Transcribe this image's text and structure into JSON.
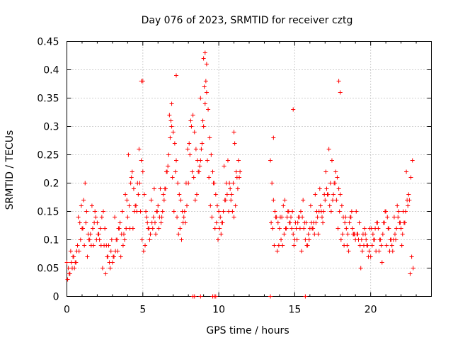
{
  "chart_data": {
    "type": "scatter",
    "title": "Day 076 of 2023, SRMTID for receiver cztg",
    "xlabel": "GPS time / hours",
    "ylabel": "SRMTID / TECUs",
    "xlim": [
      0,
      24
    ],
    "ylim": [
      0,
      0.45
    ],
    "grid": true,
    "legend": "none",
    "marker": "plus",
    "color": "#ff0000",
    "x_ticks": [
      {
        "value": 0,
        "label": "0"
      },
      {
        "value": 5,
        "label": "5"
      },
      {
        "value": 10,
        "label": "10"
      },
      {
        "value": 15,
        "label": "15"
      },
      {
        "value": 20,
        "label": "20"
      }
    ],
    "y_ticks": [
      {
        "value": 0,
        "label": "0"
      },
      {
        "value": 0.05,
        "label": "0.05"
      },
      {
        "value": 0.1,
        "label": "0.1"
      },
      {
        "value": 0.15,
        "label": "0.15"
      },
      {
        "value": 0.2,
        "label": "0.2"
      },
      {
        "value": 0.25,
        "label": "0.25"
      },
      {
        "value": 0.3,
        "label": "0.3"
      },
      {
        "value": 0.35,
        "label": "0.35"
      },
      {
        "value": 0.4,
        "label": "0.4"
      },
      {
        "value": 0.45,
        "label": "0.45"
      }
    ],
    "series": [
      {
        "name": "SRMTID",
        "x": [
          0.0,
          0.1,
          0.2,
          0.3,
          0.4,
          0.5,
          0.6,
          0.7,
          0.8,
          0.9,
          1.0,
          1.1,
          1.2,
          1.3,
          1.4,
          1.5,
          1.6,
          1.7,
          1.8,
          1.9,
          2.0,
          2.1,
          2.2,
          2.3,
          2.4,
          2.5,
          2.6,
          2.7,
          2.8,
          2.9,
          3.0,
          3.1,
          3.2,
          3.3,
          3.4,
          3.5,
          3.6,
          3.7,
          3.8,
          3.9,
          4.0,
          4.1,
          4.2,
          4.3,
          4.4,
          4.5,
          4.6,
          4.7,
          4.8,
          4.9,
          5.0,
          5.1,
          5.2,
          5.3,
          5.4,
          5.5,
          5.6,
          5.7,
          5.8,
          5.9,
          6.0,
          6.1,
          6.2,
          6.3,
          6.4,
          6.5,
          6.6,
          6.7,
          6.8,
          6.9,
          7.0,
          7.1,
          7.2,
          7.3,
          7.4,
          7.5,
          7.6,
          7.7,
          7.8,
          7.9,
          8.0,
          8.1,
          8.2,
          8.3,
          8.4,
          8.5,
          8.6,
          8.7,
          8.8,
          8.9,
          9.0,
          9.1,
          9.2,
          9.3,
          9.4,
          9.5,
          9.6,
          9.7,
          9.8,
          9.9,
          10.0,
          10.1,
          10.2,
          10.3,
          10.4,
          10.5,
          10.6,
          10.7,
          10.8,
          10.9,
          11.0,
          11.1,
          11.2,
          11.3,
          11.4,
          13.4,
          13.5,
          13.6,
          13.7,
          13.8,
          13.9,
          14.0,
          14.1,
          14.2,
          14.3,
          14.4,
          14.5,
          14.6,
          14.7,
          14.8,
          14.9,
          15.0,
          15.1,
          15.2,
          15.3,
          15.4,
          15.5,
          15.6,
          15.7,
          15.8,
          15.9,
          16.0,
          16.1,
          16.2,
          16.3,
          16.4,
          16.5,
          16.6,
          16.7,
          16.8,
          16.9,
          17.0,
          17.1,
          17.2,
          17.3,
          17.4,
          17.5,
          17.6,
          17.7,
          17.8,
          17.9,
          18.0,
          18.1,
          18.2,
          18.3,
          18.4,
          18.5,
          18.6,
          18.7,
          18.8,
          18.9,
          19.0,
          19.1,
          19.2,
          19.3,
          19.4,
          19.5,
          19.6,
          19.7,
          19.8,
          19.9,
          20.0,
          20.1,
          20.2,
          20.3,
          20.4,
          20.5,
          20.6,
          20.7,
          20.8,
          20.9,
          21.0,
          21.1,
          21.2,
          21.3,
          21.4,
          21.5,
          21.6,
          21.7,
          21.8,
          21.9,
          22.0,
          22.1,
          22.2,
          22.3,
          22.4,
          22.5,
          22.6,
          22.7,
          22.8,
          0.05,
          0.15,
          0.25,
          0.35,
          0.45,
          0.55,
          0.65,
          0.75,
          0.85,
          0.95,
          1.05,
          1.15,
          1.25,
          1.35,
          1.45,
          1.55,
          1.65,
          1.75,
          1.85,
          1.95,
          2.05,
          2.15,
          2.25,
          2.35,
          2.45,
          2.55,
          2.65,
          2.75,
          2.85,
          2.95,
          3.05,
          3.15,
          3.25,
          3.35,
          3.45,
          3.55,
          3.65,
          3.75,
          3.85,
          3.95,
          4.05,
          4.15,
          4.25,
          4.35,
          4.45,
          4.55,
          4.65,
          4.75,
          4.85,
          4.95,
          5.05,
          5.15,
          5.25,
          5.35,
          5.45,
          5.55,
          5.65,
          5.75,
          5.85,
          5.95,
          6.05,
          6.15,
          6.25,
          6.35,
          6.45,
          6.55,
          6.65,
          6.75,
          6.85,
          6.95,
          7.05,
          7.15,
          7.25,
          7.35,
          7.45,
          7.55,
          7.65,
          7.75,
          7.85,
          7.95,
          8.05,
          8.15,
          8.25,
          8.35,
          8.45,
          8.55,
          8.65,
          8.75,
          8.85,
          8.95,
          9.05,
          9.15,
          9.25,
          9.35,
          9.45,
          9.55,
          9.65,
          9.75,
          9.85,
          9.95,
          10.05,
          10.15,
          10.25,
          10.35,
          10.45,
          10.55,
          10.65,
          10.75,
          10.85,
          10.95,
          11.05,
          11.15,
          11.25,
          11.35,
          13.45,
          13.55,
          13.65,
          13.75,
          13.85,
          13.95,
          14.05,
          14.15,
          14.25,
          14.35,
          14.45,
          14.55,
          14.65,
          14.75,
          14.85,
          14.95,
          15.05,
          15.15,
          15.25,
          15.35,
          15.45,
          15.55,
          15.65,
          15.75,
          15.85,
          15.95,
          16.05,
          16.15,
          16.25,
          16.35,
          16.45,
          16.55,
          16.65,
          16.75,
          16.85,
          16.95,
          17.05,
          17.15,
          17.25,
          17.35,
          17.45,
          17.55,
          17.65,
          17.75,
          17.85,
          17.95,
          18.05,
          18.15,
          18.25,
          18.35,
          18.45,
          18.55,
          18.65,
          18.75,
          18.85,
          18.95,
          19.05,
          19.15,
          19.25,
          19.35,
          19.45,
          19.55,
          19.65,
          19.75,
          19.85,
          19.95,
          20.05,
          20.15,
          20.25,
          20.35,
          20.45,
          20.55,
          20.65,
          20.75,
          20.85,
          20.95,
          21.05,
          21.15,
          21.25,
          21.35,
          21.45,
          21.55,
          21.65,
          21.75,
          21.85,
          21.95,
          22.05,
          22.15,
          22.25,
          22.35,
          22.45,
          22.55,
          22.65,
          22.75,
          4.9,
          5.0,
          6.9,
          7.2,
          8.8,
          9.0,
          9.1,
          9.2,
          11.0,
          13.6,
          14.9,
          17.9,
          18.0,
          8.3,
          8.4,
          8.8,
          9.6,
          9.7,
          9.8,
          13.4,
          15.7
        ],
        "y": [
          0.06,
          0.05,
          0.04,
          0.06,
          0.07,
          0.05,
          0.06,
          0.09,
          0.08,
          0.1,
          0.12,
          0.17,
          0.2,
          0.15,
          0.11,
          0.1,
          0.09,
          0.12,
          0.13,
          0.14,
          0.13,
          0.11,
          0.12,
          0.14,
          0.15,
          0.12,
          0.09,
          0.07,
          0.06,
          0.08,
          0.06,
          0.07,
          0.08,
          0.1,
          0.12,
          0.13,
          0.11,
          0.09,
          0.1,
          0.12,
          0.14,
          0.16,
          0.2,
          0.22,
          0.19,
          0.16,
          0.15,
          0.18,
          0.2,
          0.24,
          0.22,
          0.18,
          0.15,
          0.13,
          0.12,
          0.11,
          0.13,
          0.14,
          0.13,
          0.15,
          0.16,
          0.14,
          0.13,
          0.15,
          0.17,
          0.19,
          0.22,
          0.25,
          0.28,
          0.3,
          0.29,
          0.27,
          0.24,
          0.2,
          0.18,
          0.17,
          0.15,
          0.14,
          0.13,
          0.16,
          0.2,
          0.25,
          0.3,
          0.32,
          0.29,
          0.26,
          0.24,
          0.22,
          0.24,
          0.27,
          0.3,
          0.34,
          0.36,
          0.33,
          0.28,
          0.25,
          0.22,
          0.2,
          0.18,
          0.16,
          0.15,
          0.14,
          0.13,
          0.15,
          0.17,
          0.2,
          0.24,
          0.2,
          0.17,
          0.15,
          0.14,
          0.16,
          0.21,
          0.24,
          0.22,
          0.24,
          0.2,
          0.17,
          0.15,
          0.14,
          0.13,
          0.12,
          0.1,
          0.09,
          0.11,
          0.12,
          0.14,
          0.15,
          0.13,
          0.12,
          0.11,
          0.1,
          0.12,
          0.13,
          0.14,
          0.15,
          0.14,
          0.12,
          0.1,
          0.09,
          0.11,
          0.12,
          0.13,
          0.12,
          0.11,
          0.13,
          0.14,
          0.15,
          0.16,
          0.14,
          0.15,
          0.17,
          0.19,
          0.18,
          0.16,
          0.15,
          0.17,
          0.2,
          0.22,
          0.21,
          0.19,
          0.18,
          0.16,
          0.14,
          0.13,
          0.12,
          0.11,
          0.13,
          0.14,
          0.12,
          0.11,
          0.1,
          0.11,
          0.1,
          0.09,
          0.1,
          0.11,
          0.12,
          0.1,
          0.09,
          0.08,
          0.07,
          0.09,
          0.1,
          0.12,
          0.13,
          0.12,
          0.1,
          0.09,
          0.11,
          0.13,
          0.15,
          0.14,
          0.12,
          0.1,
          0.09,
          0.1,
          0.11,
          0.12,
          0.14,
          0.13,
          0.12,
          0.11,
          0.13,
          0.15,
          0.17,
          0.18,
          0.04,
          0.07,
          0.05,
          0.03,
          0.04,
          0.08,
          0.05,
          0.07,
          0.06,
          0.08,
          0.14,
          0.13,
          0.16,
          0.12,
          0.09,
          0.13,
          0.07,
          0.1,
          0.11,
          0.16,
          0.09,
          0.15,
          0.1,
          0.11,
          0.1,
          0.09,
          0.05,
          0.09,
          0.04,
          0.07,
          0.09,
          0.05,
          0.1,
          0.07,
          0.14,
          0.1,
          0.08,
          0.12,
          0.07,
          0.15,
          0.11,
          0.18,
          0.17,
          0.25,
          0.12,
          0.21,
          0.12,
          0.15,
          0.16,
          0.2,
          0.26,
          0.15,
          0.1,
          0.08,
          0.09,
          0.14,
          0.12,
          0.1,
          0.17,
          0.12,
          0.19,
          0.11,
          0.15,
          0.12,
          0.19,
          0.14,
          0.18,
          0.19,
          0.22,
          0.23,
          0.32,
          0.31,
          0.21,
          0.15,
          0.22,
          0.14,
          0.11,
          0.12,
          0.1,
          0.13,
          0.15,
          0.2,
          0.26,
          0.27,
          0.31,
          0.22,
          0.21,
          0.17,
          0.18,
          0.22,
          0.23,
          0.26,
          0.31,
          0.37,
          0.38,
          0.24,
          0.21,
          0.16,
          0.14,
          0.2,
          0.12,
          0.13,
          0.1,
          0.12,
          0.11,
          0.13,
          0.23,
          0.17,
          0.18,
          0.15,
          0.19,
          0.18,
          0.2,
          0.27,
          0.22,
          0.19,
          0.21,
          0.13,
          0.12,
          0.09,
          0.14,
          0.08,
          0.09,
          0.14,
          0.14,
          0.16,
          0.17,
          0.12,
          0.15,
          0.13,
          0.14,
          0.15,
          0.09,
          0.13,
          0.1,
          0.14,
          0.12,
          0.08,
          0.17,
          0.13,
          0.13,
          0.09,
          0.1,
          0.16,
          0.12,
          0.13,
          0.18,
          0.15,
          0.11,
          0.19,
          0.15,
          0.13,
          0.18,
          0.22,
          0.18,
          0.26,
          0.2,
          0.24,
          0.18,
          0.2,
          0.17,
          0.12,
          0.15,
          0.1,
          0.11,
          0.09,
          0.14,
          0.09,
          0.08,
          0.14,
          0.15,
          0.11,
          0.11,
          0.15,
          0.11,
          0.13,
          0.05,
          0.08,
          0.09,
          0.11,
          0.09,
          0.07,
          0.12,
          0.12,
          0.11,
          0.1,
          0.08,
          0.13,
          0.08,
          0.1,
          0.06,
          0.13,
          0.15,
          0.09,
          0.12,
          0.08,
          0.1,
          0.08,
          0.14,
          0.1,
          0.16,
          0.15,
          0.13,
          0.09,
          0.15,
          0.13,
          0.22,
          0.16,
          0.17,
          0.21,
          0.24,
          0.38,
          0.38,
          0.34,
          0.39,
          0.35,
          0.42,
          0.43,
          0.41,
          0.29,
          0.28,
          0.33,
          0.38,
          0.36,
          0.0,
          0.0,
          0.0,
          0.0,
          0.0,
          0.0,
          0.0,
          0.0
        ]
      }
    ]
  }
}
